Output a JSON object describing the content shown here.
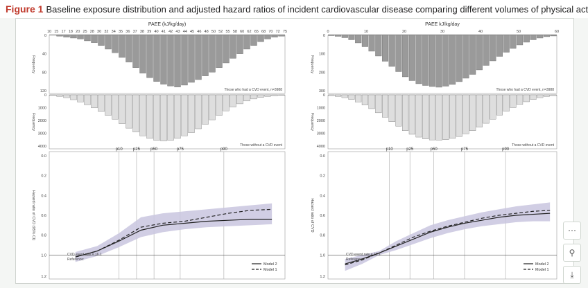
{
  "caption": {
    "figure_label": "Figure 1",
    "text": "Baseline exposure distribution and adjusted hazard ratios of incident cardiovascular disease comparing different volumes of physical activity"
  },
  "left_panel": {
    "axis_title": "PAEE (kJ/kg/day)",
    "x_ticks": [
      "10",
      "15",
      "17",
      "18",
      "20",
      "25",
      "28",
      "30",
      "32",
      "34",
      "35",
      "36",
      "37",
      "38",
      "39",
      "40",
      "41",
      "42",
      "43",
      "44",
      "45",
      "46",
      "48",
      "50",
      "52",
      "55",
      "58",
      "60",
      "62",
      "65",
      "68",
      "70",
      "72",
      "75"
    ],
    "hist_top": {
      "legend": "Those who had a CVD event, n=3988",
      "ylabel": "Frequency",
      "y_ticks": [
        "0",
        "40",
        "80",
        "120"
      ],
      "y_max": 120,
      "values": [
        0,
        2,
        4,
        6,
        8,
        12,
        16,
        22,
        30,
        38,
        48,
        58,
        70,
        82,
        92,
        100,
        106,
        110,
        112,
        108,
        102,
        96,
        88,
        80,
        70,
        60,
        50,
        40,
        30,
        22,
        14,
        8,
        4,
        2
      ]
    },
    "hist_bottom": {
      "legend": "Those without a CVD event",
      "ylabel": "Frequency",
      "y_ticks": [
        "0",
        "1000",
        "2000",
        "3000",
        "4000"
      ],
      "y_max": 4000,
      "values": [
        50,
        120,
        220,
        380,
        560,
        780,
        1020,
        1300,
        1600,
        1900,
        2250,
        2600,
        2900,
        3200,
        3400,
        3550,
        3600,
        3550,
        3400,
        3200,
        2950,
        2650,
        2300,
        1950,
        1600,
        1250,
        950,
        700,
        480,
        320,
        200,
        120,
        70,
        40
      ]
    },
    "percentiles": [
      "p10",
      "p25",
      "p50",
      "p75",
      "p90"
    ],
    "percentile_x": [
      30,
      34,
      38,
      44,
      54
    ],
    "hr_ylabel": "Hazard ratio of CVD (95% CI)",
    "hr_y_ticks": [
      "1.0",
      "0.8",
      "0.6",
      "0.4",
      "0.2",
      "0.0"
    ],
    "hr_y_ticks_top": [
      "1.2"
    ],
    "reference_label": "Reference:",
    "reference_value": "CVD event rate = 16.1",
    "legend_model1": "Model 1",
    "legend_model2": "Model 2",
    "model1": [
      [
        20,
        1.02
      ],
      [
        25,
        0.96
      ],
      [
        30,
        0.85
      ],
      [
        35,
        0.72
      ],
      [
        40,
        0.68
      ],
      [
        45,
        0.66
      ],
      [
        50,
        0.62
      ],
      [
        55,
        0.58
      ],
      [
        60,
        0.55
      ],
      [
        65,
        0.54
      ]
    ],
    "model2": [
      [
        20,
        1.02
      ],
      [
        25,
        0.96
      ],
      [
        30,
        0.86
      ],
      [
        35,
        0.75
      ],
      [
        40,
        0.7
      ],
      [
        45,
        0.68
      ],
      [
        50,
        0.66
      ],
      [
        55,
        0.65
      ],
      [
        60,
        0.64
      ],
      [
        65,
        0.64
      ]
    ],
    "ci_upper": [
      [
        20,
        1.07
      ],
      [
        25,
        1.01
      ],
      [
        30,
        0.92
      ],
      [
        35,
        0.82
      ],
      [
        40,
        0.77
      ],
      [
        45,
        0.74
      ],
      [
        50,
        0.72
      ],
      [
        55,
        0.71
      ],
      [
        60,
        0.7
      ],
      [
        65,
        0.69
      ]
    ],
    "ci_lower": [
      [
        20,
        0.97
      ],
      [
        25,
        0.91
      ],
      [
        30,
        0.78
      ],
      [
        35,
        0.62
      ],
      [
        40,
        0.58
      ],
      [
        45,
        0.56
      ],
      [
        50,
        0.54
      ],
      [
        55,
        0.52
      ],
      [
        60,
        0.5
      ],
      [
        65,
        0.48
      ]
    ]
  },
  "right_panel": {
    "axis_title": "PAEE kJ/kg/day",
    "x_ticks": [
      "0",
      "10",
      "20",
      "30",
      "40",
      "50",
      "60"
    ],
    "hist_top": {
      "legend": "Those who had a CVD event, n=3988",
      "ylabel": "Frequency",
      "y_ticks": [
        "0",
        "100",
        "200",
        "300"
      ],
      "y_max": 320,
      "values": [
        2,
        6,
        14,
        26,
        44,
        66,
        92,
        120,
        150,
        180,
        210,
        240,
        262,
        280,
        290,
        296,
        300,
        294,
        284,
        268,
        248,
        226,
        200,
        174,
        148,
        122,
        98,
        76,
        56,
        40,
        26,
        16,
        8,
        4
      ]
    },
    "hist_bottom": {
      "legend": "Those without a CVD event",
      "ylabel": "Frequency",
      "y_ticks": [
        "0",
        "1000",
        "2000",
        "3000",
        "4000"
      ],
      "y_max": 4000,
      "values": [
        60,
        120,
        220,
        360,
        560,
        800,
        1080,
        1400,
        1750,
        2100,
        2450,
        2800,
        3080,
        3300,
        3450,
        3520,
        3540,
        3500,
        3400,
        3250,
        3050,
        2800,
        2520,
        2220,
        1900,
        1580,
        1280,
        1000,
        750,
        540,
        360,
        220,
        120,
        60
      ]
    },
    "percentiles": [
      "p10",
      "p25",
      "p50",
      "p75",
      "p90"
    ],
    "percentile_x": [
      13,
      19,
      26,
      35,
      47
    ],
    "hr_ylabel": "Hazard ratio of CVD",
    "hr_y_ticks": [
      "1.0",
      "0.8",
      "0.6",
      "0.4",
      "0.2",
      "0.0"
    ],
    "hr_y_ticks_top": [
      "1.2"
    ],
    "reference_label": "Reference:",
    "reference_value": "CVD event rate = 16.1",
    "legend_model1": "Model 1",
    "legend_model2": "Model 2",
    "model1": [
      [
        0,
        1.1
      ],
      [
        5,
        1.05
      ],
      [
        10,
        0.98
      ],
      [
        15,
        0.9
      ],
      [
        20,
        0.82
      ],
      [
        25,
        0.76
      ],
      [
        30,
        0.71
      ],
      [
        35,
        0.67
      ],
      [
        40,
        0.63
      ],
      [
        45,
        0.6
      ],
      [
        50,
        0.58
      ],
      [
        55,
        0.56
      ],
      [
        60,
        0.55
      ]
    ],
    "model2": [
      [
        0,
        1.09
      ],
      [
        5,
        1.04
      ],
      [
        10,
        0.98
      ],
      [
        15,
        0.91
      ],
      [
        20,
        0.84
      ],
      [
        25,
        0.77
      ],
      [
        30,
        0.72
      ],
      [
        35,
        0.68
      ],
      [
        40,
        0.65
      ],
      [
        45,
        0.62
      ],
      [
        50,
        0.6
      ],
      [
        55,
        0.59
      ],
      [
        60,
        0.58
      ]
    ],
    "ci_upper": [
      [
        0,
        1.16
      ],
      [
        5,
        1.09
      ],
      [
        10,
        1.0
      ],
      [
        15,
        0.95
      ],
      [
        20,
        0.89
      ],
      [
        25,
        0.83
      ],
      [
        30,
        0.78
      ],
      [
        35,
        0.74
      ],
      [
        40,
        0.71
      ],
      [
        45,
        0.69
      ],
      [
        50,
        0.67
      ],
      [
        55,
        0.66
      ],
      [
        60,
        0.66
      ]
    ],
    "ci_lower": [
      [
        0,
        1.04
      ],
      [
        5,
        1.0
      ],
      [
        10,
        0.96
      ],
      [
        15,
        0.86
      ],
      [
        20,
        0.78
      ],
      [
        25,
        0.7
      ],
      [
        30,
        0.65
      ],
      [
        35,
        0.61
      ],
      [
        40,
        0.57
      ],
      [
        45,
        0.54
      ],
      [
        50,
        0.51
      ],
      [
        55,
        0.49
      ],
      [
        60,
        0.47
      ]
    ]
  },
  "tools": {
    "more": "⋯",
    "zoom": "⚲",
    "download": "⤓"
  },
  "colors": {
    "bar_top": "#9a9a9a",
    "bar_bottom": "#dedede",
    "ci_band": "#c9c6df",
    "line": "#222222",
    "caption_label": "#c0392b"
  }
}
